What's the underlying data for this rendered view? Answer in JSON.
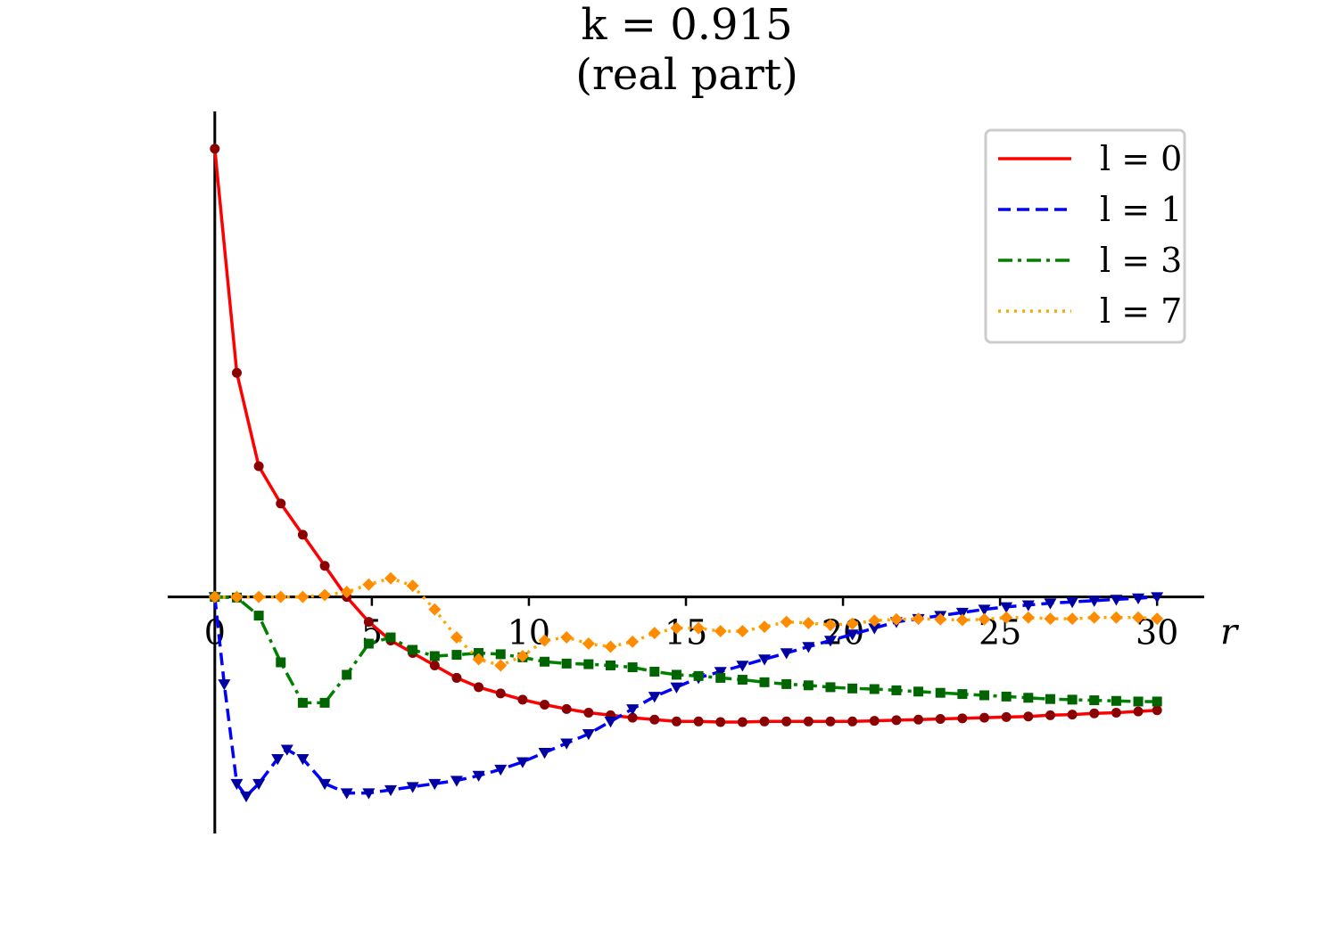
{
  "chart_data": {
    "type": "line",
    "title": "k = 0.915",
    "subtitle": "(real part)",
    "xlabel": "r",
    "ylabel": "",
    "xlim": [
      -1.5,
      31.5
    ],
    "ylim": [
      -0.38,
      0.78
    ],
    "xticks": [
      0,
      5,
      10,
      15,
      20,
      25,
      30
    ],
    "xtick_labels": [
      "0",
      "5",
      "10",
      "15",
      "20",
      "25",
      "30"
    ],
    "grid": false,
    "legend_position": "top-right",
    "series": [
      {
        "name": "l = 0",
        "line_color": "#ff0000",
        "marker_color": "#8b0000",
        "line_style": "solid",
        "marker": "circle",
        "x": [
          0,
          0.7,
          1.4,
          2.1,
          2.8,
          3.5,
          4.2,
          4.9,
          5.6,
          6.3,
          7.0,
          7.7,
          8.4,
          9.1,
          9.8,
          10.5,
          11.2,
          11.9,
          12.6,
          13.3,
          14.0,
          14.7,
          15.4,
          16.1,
          16.8,
          17.5,
          18.2,
          18.9,
          19.6,
          20.3,
          21.0,
          21.7,
          22.4,
          23.1,
          23.8,
          24.5,
          25.2,
          25.9,
          26.6,
          27.3,
          28.0,
          28.7,
          29.4,
          30.0
        ],
        "y": [
          0.72,
          0.36,
          0.21,
          0.15,
          0.1,
          0.05,
          0.0,
          -0.04,
          -0.07,
          -0.09,
          -0.11,
          -0.13,
          -0.145,
          -0.155,
          -0.165,
          -0.173,
          -0.18,
          -0.186,
          -0.19,
          -0.194,
          -0.197,
          -0.2,
          -0.2,
          -0.201,
          -0.201,
          -0.2,
          -0.2,
          -0.2,
          -0.2,
          -0.2,
          -0.199,
          -0.198,
          -0.197,
          -0.196,
          -0.195,
          -0.194,
          -0.193,
          -0.192,
          -0.19,
          -0.189,
          -0.187,
          -0.186,
          -0.184,
          -0.182
        ]
      },
      {
        "name": "l = 1",
        "line_color": "#0000ff",
        "marker_color": "#0000a0",
        "line_style": "dashed",
        "marker": "triangle-down",
        "x": [
          0,
          0.3,
          0.7,
          1.0,
          1.4,
          2.0,
          2.3,
          2.8,
          3.5,
          4.2,
          4.9,
          5.6,
          6.3,
          7.0,
          7.7,
          8.4,
          9.1,
          9.8,
          10.5,
          11.2,
          11.9,
          12.6,
          13.3,
          14.0,
          14.7,
          15.4,
          16.1,
          16.8,
          17.5,
          18.2,
          18.9,
          19.6,
          20.3,
          21.0,
          21.7,
          22.4,
          23.1,
          23.8,
          24.5,
          25.2,
          25.9,
          26.6,
          27.3,
          28.0,
          28.7,
          29.4,
          30.0
        ],
        "y": [
          0.0,
          -0.14,
          -0.3,
          -0.32,
          -0.3,
          -0.26,
          -0.245,
          -0.26,
          -0.3,
          -0.315,
          -0.315,
          -0.31,
          -0.305,
          -0.3,
          -0.295,
          -0.287,
          -0.277,
          -0.265,
          -0.25,
          -0.235,
          -0.22,
          -0.2,
          -0.18,
          -0.16,
          -0.145,
          -0.13,
          -0.12,
          -0.11,
          -0.1,
          -0.09,
          -0.08,
          -0.07,
          -0.06,
          -0.05,
          -0.04,
          -0.035,
          -0.03,
          -0.025,
          -0.02,
          -0.016,
          -0.013,
          -0.01,
          -0.008,
          -0.006,
          -0.004,
          -0.002,
          0.0
        ]
      },
      {
        "name": "l = 3",
        "line_color": "#008000",
        "marker_color": "#006400",
        "line_style": "dashdot",
        "marker": "square",
        "x": [
          0,
          0.7,
          1.4,
          2.1,
          2.8,
          3.5,
          4.2,
          4.9,
          5.6,
          6.3,
          7.0,
          7.7,
          8.4,
          9.1,
          9.8,
          10.5,
          11.2,
          11.9,
          12.6,
          13.3,
          14.0,
          14.7,
          15.4,
          16.1,
          16.8,
          17.5,
          18.2,
          18.9,
          19.6,
          20.3,
          21.0,
          21.7,
          22.4,
          23.1,
          23.8,
          24.5,
          25.2,
          25.9,
          26.6,
          27.3,
          28.0,
          28.7,
          29.4,
          30.0
        ],
        "y": [
          0.0,
          -0.001,
          -0.03,
          -0.105,
          -0.17,
          -0.17,
          -0.125,
          -0.075,
          -0.065,
          -0.085,
          -0.095,
          -0.093,
          -0.09,
          -0.092,
          -0.097,
          -0.104,
          -0.107,
          -0.108,
          -0.11,
          -0.113,
          -0.12,
          -0.125,
          -0.127,
          -0.13,
          -0.133,
          -0.137,
          -0.14,
          -0.142,
          -0.145,
          -0.147,
          -0.148,
          -0.15,
          -0.152,
          -0.154,
          -0.156,
          -0.158,
          -0.16,
          -0.162,
          -0.164,
          -0.165,
          -0.166,
          -0.167,
          -0.168,
          -0.168
        ]
      },
      {
        "name": "l = 7",
        "line_color": "#ffa500",
        "marker_color": "#ff8c00",
        "line_style": "dotted",
        "marker": "diamond",
        "x": [
          0,
          0.7,
          1.4,
          2.1,
          2.8,
          3.5,
          4.2,
          4.9,
          5.6,
          6.3,
          7.0,
          7.7,
          8.4,
          9.1,
          9.8,
          10.5,
          11.2,
          11.9,
          12.6,
          13.3,
          14.0,
          14.7,
          15.4,
          16.1,
          16.8,
          17.5,
          18.2,
          18.9,
          19.6,
          20.3,
          21.0,
          21.7,
          22.4,
          23.1,
          23.8,
          24.5,
          25.2,
          25.9,
          26.6,
          27.3,
          28.0,
          28.7,
          29.4,
          30.0
        ],
        "y": [
          0.0,
          0.0,
          0.0,
          0.0,
          0.0,
          0.003,
          0.008,
          0.02,
          0.03,
          0.018,
          -0.02,
          -0.065,
          -0.1,
          -0.11,
          -0.095,
          -0.07,
          -0.065,
          -0.075,
          -0.08,
          -0.072,
          -0.058,
          -0.05,
          -0.05,
          -0.055,
          -0.055,
          -0.048,
          -0.04,
          -0.042,
          -0.045,
          -0.043,
          -0.038,
          -0.036,
          -0.035,
          -0.036,
          -0.037,
          -0.036,
          -0.033,
          -0.033,
          -0.035,
          -0.035,
          -0.033,
          -0.033,
          -0.033,
          -0.035
        ]
      }
    ]
  }
}
